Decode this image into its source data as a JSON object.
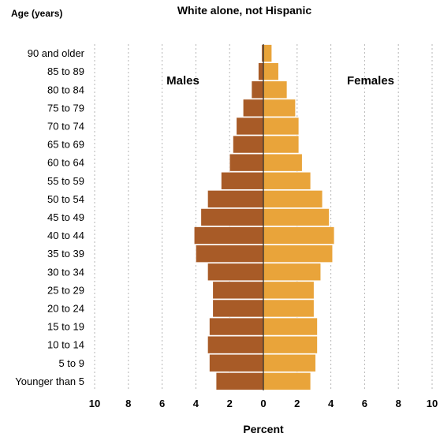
{
  "chart_data": {
    "type": "bar",
    "orientation": "horizontal",
    "layout": "population-pyramid",
    "title": "White alone, not Hispanic",
    "ylabel": "Age (years)",
    "xlabel": "Percent",
    "categories": [
      "90 and older",
      "85 to 89",
      "80 to 84",
      "75 to 79",
      "70 to 74",
      "65 to 69",
      "60 to 64",
      "55 to 59",
      "50 to 54",
      "45 to 49",
      "40 to 44",
      "35 to 39",
      "30 to 34",
      "25 to 29",
      "20 to 24",
      "15 to 19",
      "10 to 14",
      "5 to 9",
      "Younger than 5"
    ],
    "series": [
      {
        "name": "Males",
        "side": "left",
        "color": "#a85b27",
        "values": [
          0.1,
          0.3,
          0.7,
          1.2,
          1.6,
          1.8,
          2.0,
          2.5,
          3.3,
          3.7,
          4.1,
          4.0,
          3.3,
          3.0,
          3.0,
          3.2,
          3.3,
          3.2,
          2.8
        ]
      },
      {
        "name": "Females",
        "side": "right",
        "color": "#e9a43a",
        "values": [
          0.5,
          0.9,
          1.4,
          1.9,
          2.1,
          2.1,
          2.3,
          2.8,
          3.5,
          3.9,
          4.2,
          4.1,
          3.4,
          3.0,
          3.0,
          3.2,
          3.2,
          3.1,
          2.8
        ]
      }
    ],
    "xticks": [
      "10",
      "8",
      "6",
      "4",
      "2",
      "0",
      "2",
      "4",
      "6",
      "8",
      "10"
    ],
    "xlim": [
      -10,
      10
    ],
    "grid": "vertical dotted"
  }
}
